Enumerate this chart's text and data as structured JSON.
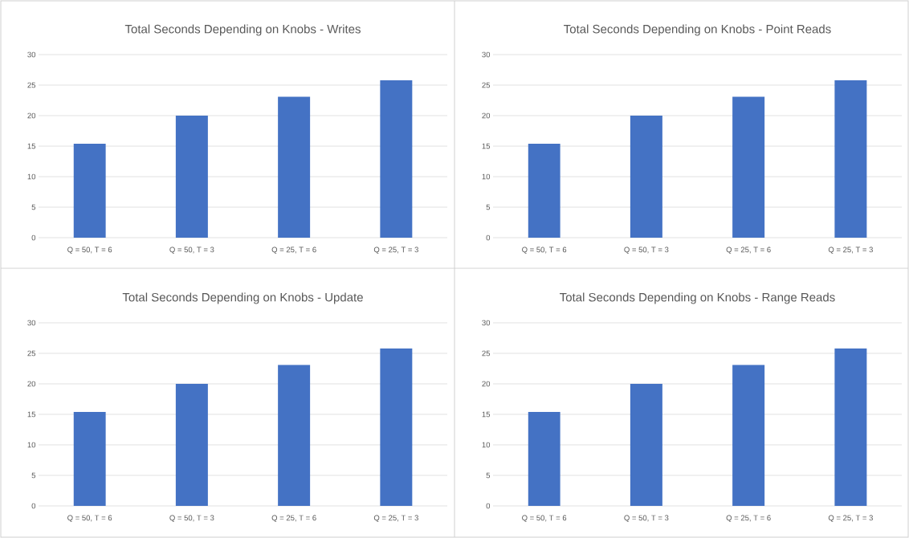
{
  "chart_data": [
    {
      "type": "bar",
      "title": "Total Seconds Depending on Knobs - Writes",
      "categories": [
        "Q = 50, T = 6",
        "Q = 50, T = 3",
        "Q = 25, T = 6",
        "Q = 25, T = 3"
      ],
      "values": [
        15.4,
        20.0,
        23.1,
        25.8
      ],
      "color": "#4472c4",
      "ylim": [
        0,
        30
      ],
      "yticks": [
        0,
        5,
        10,
        15,
        20,
        25,
        30
      ],
      "grid": "y"
    },
    {
      "type": "bar",
      "title": "Total Seconds Depending on Knobs - Point Reads",
      "categories": [
        "Q = 50, T = 6",
        "Q = 50, T = 3",
        "Q = 25, T = 6",
        "Q = 25, T = 3"
      ],
      "values": [
        15.4,
        20.0,
        23.1,
        25.8
      ],
      "color": "#4472c4",
      "ylim": [
        0,
        30
      ],
      "yticks": [
        0,
        5,
        10,
        15,
        20,
        25,
        30
      ],
      "grid": "y"
    },
    {
      "type": "bar",
      "title": "Total Seconds Depending on Knobs - Update",
      "categories": [
        "Q = 50, T = 6",
        "Q = 50, T = 3",
        "Q = 25, T = 6",
        "Q = 25, T = 3"
      ],
      "values": [
        15.4,
        20.0,
        23.1,
        25.8
      ],
      "color": "#4472c4",
      "ylim": [
        0,
        30
      ],
      "yticks": [
        0,
        5,
        10,
        15,
        20,
        25,
        30
      ],
      "grid": "y"
    },
    {
      "type": "bar",
      "title": "Total Seconds Depending on Knobs - Range Reads",
      "categories": [
        "Q = 50, T = 6",
        "Q = 50, T = 3",
        "Q = 25, T = 6",
        "Q = 25, T = 3"
      ],
      "values": [
        15.4,
        20.0,
        23.1,
        25.8
      ],
      "color": "#4472c4",
      "ylim": [
        0,
        30
      ],
      "yticks": [
        0,
        5,
        10,
        15,
        20,
        25,
        30
      ],
      "grid": "y"
    }
  ]
}
